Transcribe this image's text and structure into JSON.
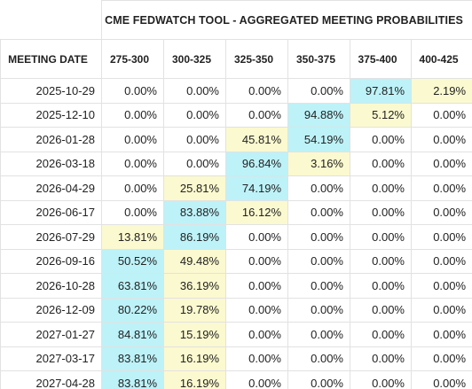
{
  "title": "CME FEDWATCH TOOL - AGGREGATED MEETING PROBABILITIES",
  "meeting_date_label": "MEETING DATE",
  "ranges": [
    "275-300",
    "300-325",
    "325-350",
    "350-375",
    "375-400",
    "400-425"
  ],
  "colors": {
    "highest": "#bdf2f8",
    "second": "#fbf9cf",
    "border": "#e2e2e2"
  },
  "rows": [
    {
      "date": "2025-10-29",
      "cells": [
        {
          "v": "0.00%",
          "hl": ""
        },
        {
          "v": "0.00%",
          "hl": ""
        },
        {
          "v": "0.00%",
          "hl": ""
        },
        {
          "v": "0.00%",
          "hl": ""
        },
        {
          "v": "97.81%",
          "hl": "blue"
        },
        {
          "v": "2.19%",
          "hl": "yellow"
        }
      ]
    },
    {
      "date": "2025-12-10",
      "cells": [
        {
          "v": "0.00%",
          "hl": ""
        },
        {
          "v": "0.00%",
          "hl": ""
        },
        {
          "v": "0.00%",
          "hl": ""
        },
        {
          "v": "94.88%",
          "hl": "blue"
        },
        {
          "v": "5.12%",
          "hl": "yellow"
        },
        {
          "v": "0.00%",
          "hl": ""
        }
      ]
    },
    {
      "date": "2026-01-28",
      "cells": [
        {
          "v": "0.00%",
          "hl": ""
        },
        {
          "v": "0.00%",
          "hl": ""
        },
        {
          "v": "45.81%",
          "hl": "yellow"
        },
        {
          "v": "54.19%",
          "hl": "blue"
        },
        {
          "v": "0.00%",
          "hl": ""
        },
        {
          "v": "0.00%",
          "hl": ""
        }
      ]
    },
    {
      "date": "2026-03-18",
      "cells": [
        {
          "v": "0.00%",
          "hl": ""
        },
        {
          "v": "0.00%",
          "hl": ""
        },
        {
          "v": "96.84%",
          "hl": "blue"
        },
        {
          "v": "3.16%",
          "hl": "yellow"
        },
        {
          "v": "0.00%",
          "hl": ""
        },
        {
          "v": "0.00%",
          "hl": ""
        }
      ]
    },
    {
      "date": "2026-04-29",
      "cells": [
        {
          "v": "0.00%",
          "hl": ""
        },
        {
          "v": "25.81%",
          "hl": "yellow"
        },
        {
          "v": "74.19%",
          "hl": "blue"
        },
        {
          "v": "0.00%",
          "hl": ""
        },
        {
          "v": "0.00%",
          "hl": ""
        },
        {
          "v": "0.00%",
          "hl": ""
        }
      ]
    },
    {
      "date": "2026-06-17",
      "cells": [
        {
          "v": "0.00%",
          "hl": ""
        },
        {
          "v": "83.88%",
          "hl": "blue"
        },
        {
          "v": "16.12%",
          "hl": "yellow"
        },
        {
          "v": "0.00%",
          "hl": ""
        },
        {
          "v": "0.00%",
          "hl": ""
        },
        {
          "v": "0.00%",
          "hl": ""
        }
      ]
    },
    {
      "date": "2026-07-29",
      "cells": [
        {
          "v": "13.81%",
          "hl": "yellow"
        },
        {
          "v": "86.19%",
          "hl": "blue"
        },
        {
          "v": "0.00%",
          "hl": ""
        },
        {
          "v": "0.00%",
          "hl": ""
        },
        {
          "v": "0.00%",
          "hl": ""
        },
        {
          "v": "0.00%",
          "hl": ""
        }
      ]
    },
    {
      "date": "2026-09-16",
      "cells": [
        {
          "v": "50.52%",
          "hl": "blue"
        },
        {
          "v": "49.48%",
          "hl": "yellow"
        },
        {
          "v": "0.00%",
          "hl": ""
        },
        {
          "v": "0.00%",
          "hl": ""
        },
        {
          "v": "0.00%",
          "hl": ""
        },
        {
          "v": "0.00%",
          "hl": ""
        }
      ]
    },
    {
      "date": "2026-10-28",
      "cells": [
        {
          "v": "63.81%",
          "hl": "blue"
        },
        {
          "v": "36.19%",
          "hl": "yellow"
        },
        {
          "v": "0.00%",
          "hl": ""
        },
        {
          "v": "0.00%",
          "hl": ""
        },
        {
          "v": "0.00%",
          "hl": ""
        },
        {
          "v": "0.00%",
          "hl": ""
        }
      ]
    },
    {
      "date": "2026-12-09",
      "cells": [
        {
          "v": "80.22%",
          "hl": "blue"
        },
        {
          "v": "19.78%",
          "hl": "yellow"
        },
        {
          "v": "0.00%",
          "hl": ""
        },
        {
          "v": "0.00%",
          "hl": ""
        },
        {
          "v": "0.00%",
          "hl": ""
        },
        {
          "v": "0.00%",
          "hl": ""
        }
      ]
    },
    {
      "date": "2027-01-27",
      "cells": [
        {
          "v": "84.81%",
          "hl": "blue"
        },
        {
          "v": "15.19%",
          "hl": "yellow"
        },
        {
          "v": "0.00%",
          "hl": ""
        },
        {
          "v": "0.00%",
          "hl": ""
        },
        {
          "v": "0.00%",
          "hl": ""
        },
        {
          "v": "0.00%",
          "hl": ""
        }
      ]
    },
    {
      "date": "2027-03-17",
      "cells": [
        {
          "v": "83.81%",
          "hl": "blue"
        },
        {
          "v": "16.19%",
          "hl": "yellow"
        },
        {
          "v": "0.00%",
          "hl": ""
        },
        {
          "v": "0.00%",
          "hl": ""
        },
        {
          "v": "0.00%",
          "hl": ""
        },
        {
          "v": "0.00%",
          "hl": ""
        }
      ]
    },
    {
      "date": "2027-04-28",
      "cells": [
        {
          "v": "83.81%",
          "hl": "blue"
        },
        {
          "v": "16.19%",
          "hl": "yellow"
        },
        {
          "v": "0.00%",
          "hl": ""
        },
        {
          "v": "0.00%",
          "hl": ""
        },
        {
          "v": "0.00%",
          "hl": ""
        },
        {
          "v": "0.00%",
          "hl": ""
        }
      ]
    }
  ]
}
